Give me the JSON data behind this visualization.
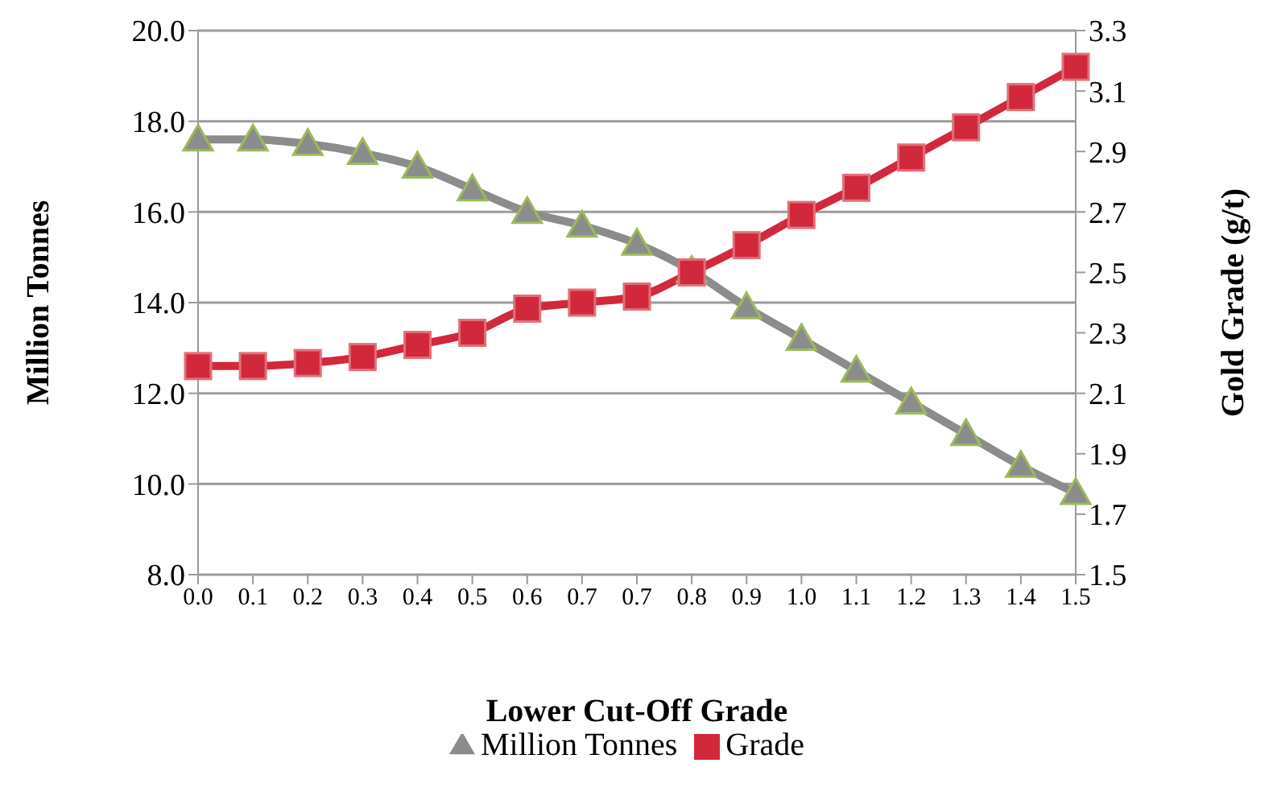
{
  "chart_data": {
    "type": "line",
    "xlabel": "Lower Cut-Off Grade",
    "ylabel": "Million Tonnes",
    "y2label": "Gold Grade (g/t)",
    "categories": [
      "0.0",
      "0.1",
      "0.2",
      "0.3",
      "0.4",
      "0.5",
      "0.6",
      "0.7",
      "0.7",
      "0.8",
      "0.9",
      "1.0",
      "1.1",
      "1.2",
      "1.3",
      "1.4",
      "1.5"
    ],
    "series": [
      {
        "name": "Million Tonnes",
        "color": "#8c8c8c",
        "marker": "triangle",
        "values": [
          17.6,
          17.6,
          17.5,
          17.3,
          17.0,
          16.5,
          16.0,
          15.7,
          15.3,
          14.7,
          13.9,
          13.2,
          12.5,
          11.8,
          11.1,
          10.4,
          9.8
        ]
      },
      {
        "name": "Grade",
        "color": "#d2283c",
        "marker": "square",
        "axis": "y2",
        "values": [
          2.19,
          2.19,
          2.2,
          2.22,
          2.26,
          2.3,
          2.38,
          2.4,
          2.42,
          2.5,
          2.59,
          2.69,
          2.78,
          2.88,
          2.98,
          3.08,
          3.18
        ]
      }
    ],
    "ylim": [
      8,
      20
    ],
    "yticks": [
      {
        "value": 8,
        "label": "8.0"
      },
      {
        "value": 10,
        "label": "10.0"
      },
      {
        "value": 12,
        "label": "12.0"
      },
      {
        "value": 14,
        "label": "14.0"
      },
      {
        "value": 16,
        "label": "16.0"
      },
      {
        "value": 18,
        "label": "18.0"
      },
      {
        "value": 20,
        "label": "20.0"
      }
    ],
    "y2lim": [
      1.5,
      3.3
    ],
    "y2ticks": [
      1.5,
      1.7,
      1.9,
      2.1,
      2.3,
      2.5,
      2.7,
      2.9,
      3.1,
      3.3
    ],
    "grid": "y",
    "legend": "bottom",
    "line_style": "solid"
  }
}
